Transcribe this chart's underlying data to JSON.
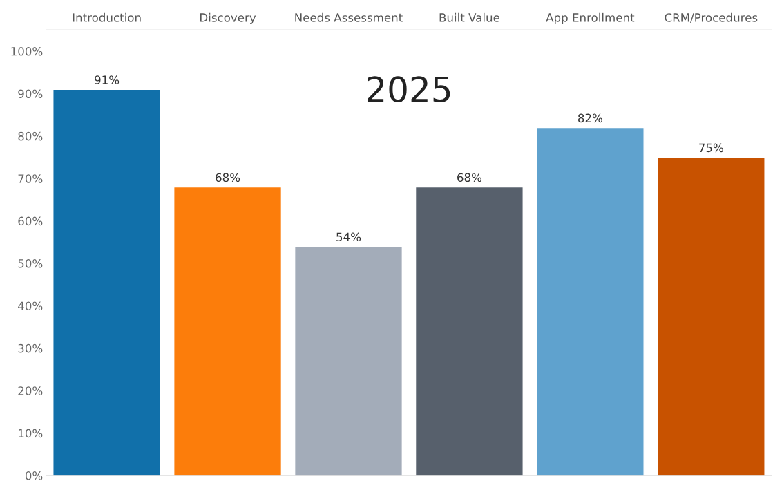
{
  "chart_data": {
    "type": "bar",
    "categories": [
      "Introduction",
      "Discovery",
      "Needs Assessment",
      "Built Value",
      "App Enrollment",
      "CRM/Procedures"
    ],
    "values": [
      91,
      68,
      54,
      68,
      82,
      75
    ],
    "colors": [
      "#1170aa",
      "#fc7d0b",
      "#a3acb9",
      "#57606c",
      "#5fa2ce",
      "#c85200"
    ],
    "value_labels": [
      "91%",
      "68%",
      "54%",
      "68%",
      "82%",
      "75%"
    ],
    "ylim": [
      0,
      105
    ],
    "yticks": [
      {
        "value": 0,
        "label": "0%"
      },
      {
        "value": 10,
        "label": "10%"
      },
      {
        "value": 20,
        "label": "20%"
      },
      {
        "value": 30,
        "label": "30%"
      },
      {
        "value": 40,
        "label": "40%"
      },
      {
        "value": 50,
        "label": "50%"
      },
      {
        "value": 60,
        "label": "60%"
      },
      {
        "value": 70,
        "label": "70%"
      },
      {
        "value": 80,
        "label": "80%"
      },
      {
        "value": 90,
        "label": "90%"
      },
      {
        "value": 100,
        "label": "100%"
      }
    ],
    "annotations": [
      "2025"
    ],
    "grid": false
  }
}
